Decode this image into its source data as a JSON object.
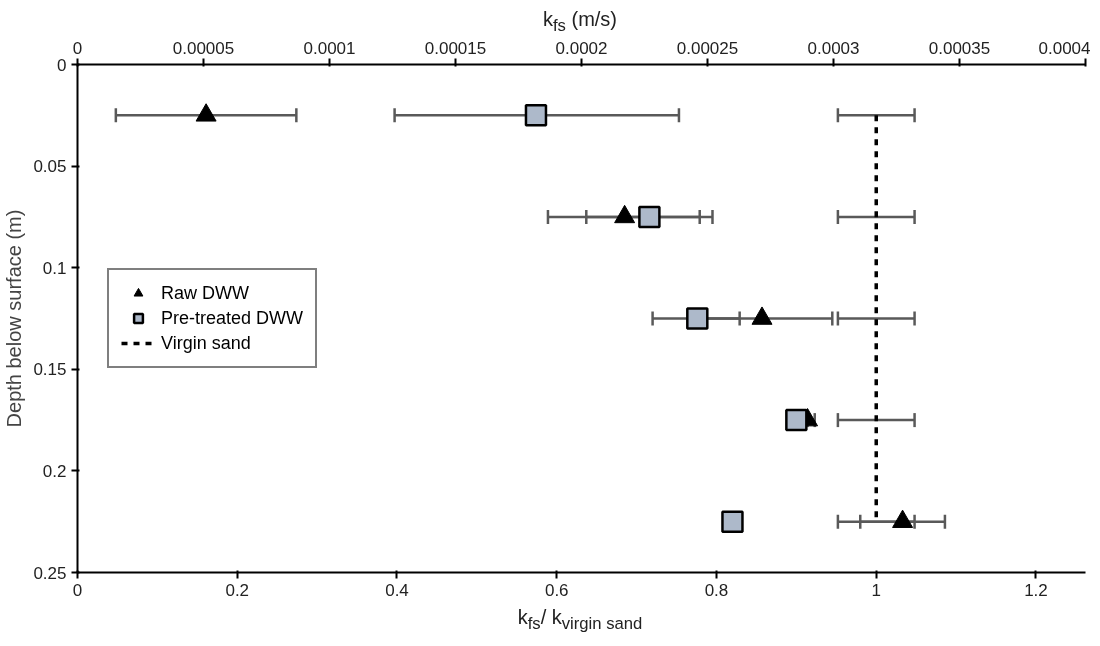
{
  "chart_data": {
    "type": "scatter",
    "xlabel": "k$_{fs}$/ k$_{virgin sand}$",
    "ylabel": "Depth below surface (m)",
    "x2label": "k$_{fs}$ (m/s)",
    "xlim": [
      0,
      1.262
    ],
    "xticks": [
      0,
      0.2,
      0.4,
      0.6,
      0.8,
      1,
      1.2
    ],
    "x2lim": [
      0,
      0.0004
    ],
    "x2ticks": [
      0,
      {
        "value": 5e-05,
        "label": "0.00005"
      },
      {
        "value": 0.0001,
        "label": "0.0001"
      },
      {
        "value": 0.00015,
        "label": "0.00015"
      },
      {
        "value": 0.0002,
        "label": "0.0002"
      },
      {
        "value": 0.00025,
        "label": "0.00025"
      },
      {
        "value": 0.0003,
        "label": "0.0003"
      },
      {
        "value": 0.00035,
        "label": "0.00035"
      },
      {
        "value": 0.0004,
        "label": "0.0004"
      }
    ],
    "ylim": [
      0.25,
      0
    ],
    "yticks": [
      0,
      0.05,
      0.1,
      0.15,
      0.2,
      0.25
    ],
    "grid": false,
    "legend": "left",
    "series": [
      {
        "name": "Raw DWW",
        "marker": "triangle",
        "color": "#000000",
        "x": [
          0.161,
          0.685,
          0.857,
          0.914,
          1.033
        ],
        "values": [
          0.025,
          0.075,
          0.125,
          0.175,
          0.225
        ],
        "xerrors": [
          [
            0.048,
            0.274
          ],
          [
            0.589,
            0.779
          ],
          [
            0.769,
            0.945
          ],
          [
            0.914,
            0.923
          ],
          [
            0.98,
            1.086
          ]
        ]
      },
      {
        "name": "Pre-treated DWW",
        "marker": "square",
        "color": "#adb9ca",
        "x": [
          0.574,
          0.716,
          0.776,
          0.9,
          0.82
        ],
        "values": [
          0.025,
          0.075,
          0.125,
          0.175,
          0.225
        ],
        "xerrors": [
          [
            0.397,
            0.753
          ],
          [
            0.637,
            0.795
          ],
          [
            0.72,
            0.829
          ],
          null,
          null
        ]
      },
      {
        "name": "Virgin sand",
        "type": "line",
        "marker": "none",
        "line_style": "dashed",
        "color": "#000000",
        "x": [
          1,
          1,
          1,
          1,
          1
        ],
        "values": [
          0.025,
          0.075,
          0.125,
          0.175,
          0.225
        ],
        "xerrors": [
          0.048,
          0.048,
          0.048,
          0.048,
          0.048
        ]
      }
    ]
  }
}
